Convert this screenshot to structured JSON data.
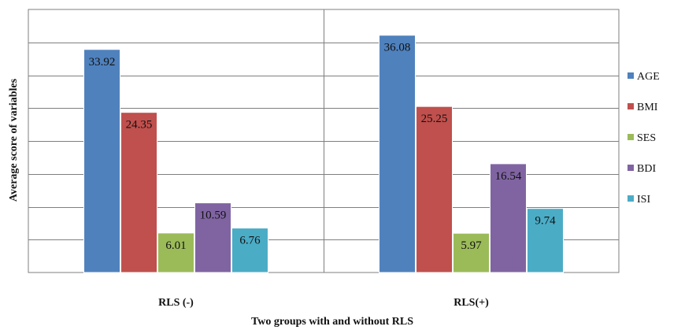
{
  "chart_data": {
    "type": "bar",
    "title": "",
    "xlabel": "Two groups with and without RLS",
    "ylabel": "Average score of variables",
    "categories": [
      "RLS (-)",
      "RLS(+)"
    ],
    "series": [
      {
        "name": "AGE",
        "values": [
          33.92,
          36.08
        ],
        "color": "#4F81BD"
      },
      {
        "name": "BMI",
        "values": [
          24.35,
          25.25
        ],
        "color": "#C0504D"
      },
      {
        "name": "SES",
        "values": [
          6.01,
          5.97
        ],
        "color": "#9BBB59"
      },
      {
        "name": "BDI",
        "values": [
          10.59,
          16.54
        ],
        "color": "#8064A2"
      },
      {
        "name": "ISI",
        "values": [
          6.76,
          9.74
        ],
        "color": "#4BACC6"
      }
    ],
    "ylim": [
      0,
      40
    ],
    "gridlines": true,
    "legend": "right"
  }
}
